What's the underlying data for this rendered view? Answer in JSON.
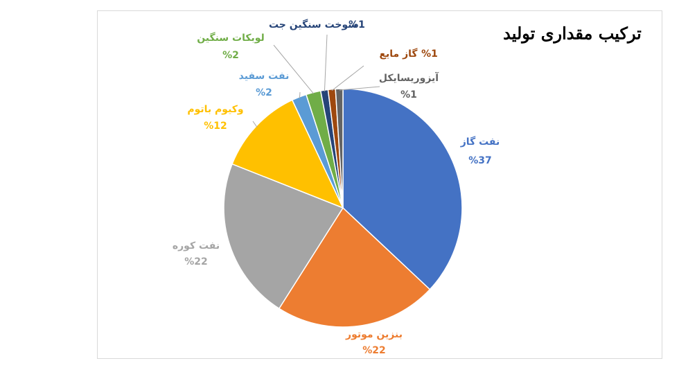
{
  "chart_data": {
    "type": "pie",
    "title": "ترکیب مقداری تولید",
    "categories": [
      "نفت گاز",
      "بنزین موتور",
      "نفت کوره",
      "وکیوم باتوم",
      "نفت سفید",
      "لوبکات سنگین",
      "سوخت سنگین جت",
      "گاز مایع",
      "آیزوریسایکل"
    ],
    "values": [
      37,
      22,
      22,
      12,
      2,
      2,
      1,
      1,
      1
    ],
    "value_labels": [
      "%37",
      "%22",
      "%22",
      "%12",
      "%2",
      "%2",
      "%1",
      "%1",
      "%1"
    ],
    "colors": [
      "#4472c4",
      "#ed7d31",
      "#a5a5a5",
      "#ffc000",
      "#5b9bd5",
      "#70ad47",
      "#264478",
      "#9e480e",
      "#636363"
    ]
  }
}
